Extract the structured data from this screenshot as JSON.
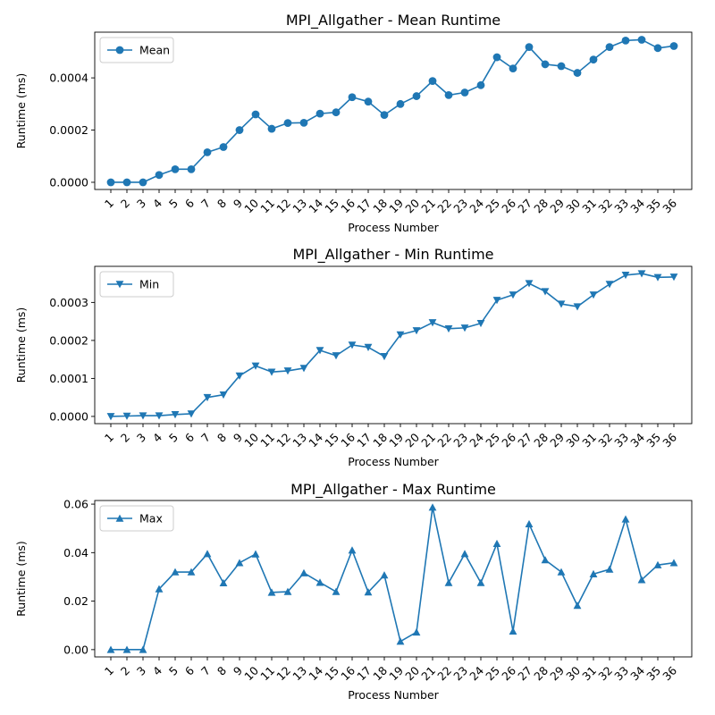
{
  "chart_data": [
    {
      "type": "line",
      "title": "MPI_Allgather - Mean Runtime",
      "xlabel": "Process Number",
      "ylabel": "Runtime (ms)",
      "marker": "circle",
      "color": "#1f77b4",
      "legend": "top-left",
      "grid": false,
      "ylim": [
        -2.75e-05,
        0.000575
      ],
      "yticks": [
        0,
        0.0002,
        0.0004
      ],
      "ytick_labels": [
        "0.0000",
        "0.0002",
        "0.0004"
      ],
      "categories": [
        "1",
        "2",
        "3",
        "4",
        "5",
        "6",
        "7",
        "8",
        "9",
        "10",
        "11",
        "12",
        "13",
        "14",
        "15",
        "16",
        "17",
        "18",
        "19",
        "20",
        "21",
        "22",
        "23",
        "24",
        "25",
        "26",
        "27",
        "28",
        "29",
        "30",
        "31",
        "32",
        "33",
        "34",
        "35",
        "36"
      ],
      "series": [
        {
          "name": "Mean",
          "values": [
            0.0,
            0.0,
            0.0,
            2.8e-05,
            5e-05,
            5e-05,
            0.000115,
            0.000135,
            0.0002,
            0.00026,
            0.000205,
            0.000227,
            0.000228,
            0.000263,
            0.000268,
            0.000326,
            0.000309,
            0.000258,
            0.0003,
            0.00033,
            0.000388,
            0.000334,
            0.000344,
            0.000372,
            0.000479,
            0.000436,
            0.000518,
            0.000452,
            0.000445,
            0.000419,
            0.00047,
            0.000518,
            0.000543,
            0.000546,
            0.000514,
            0.000522
          ]
        }
      ]
    },
    {
      "type": "line",
      "title": "MPI_Allgather - Min Runtime",
      "xlabel": "Process Number",
      "ylabel": "Runtime (ms)",
      "marker": "triangle-down",
      "color": "#1f77b4",
      "legend": "top-left",
      "grid": false,
      "ylim": [
        -1.9e-05,
        0.000395
      ],
      "yticks": [
        0,
        0.0001,
        0.0002,
        0.0003
      ],
      "ytick_labels": [
        "0.0000",
        "0.0001",
        "0.0002",
        "0.0003"
      ],
      "categories": [
        "1",
        "2",
        "3",
        "4",
        "5",
        "6",
        "7",
        "8",
        "9",
        "10",
        "11",
        "12",
        "13",
        "14",
        "15",
        "16",
        "17",
        "18",
        "19",
        "20",
        "21",
        "22",
        "23",
        "24",
        "25",
        "26",
        "27",
        "28",
        "29",
        "30",
        "31",
        "32",
        "33",
        "34",
        "35",
        "36"
      ],
      "series": [
        {
          "name": "Min",
          "values": [
            0.0,
            1e-06,
            2e-06,
            2e-06,
            5e-06,
            7e-06,
            5e-05,
            5.7e-05,
            0.000107,
            0.000133,
            0.000117,
            0.00012,
            0.000127,
            0.000174,
            0.00016,
            0.000188,
            0.000182,
            0.000158,
            0.000215,
            0.000226,
            0.000247,
            0.000231,
            0.000233,
            0.000245,
            0.000306,
            0.00032,
            0.00035,
            0.000329,
            0.000296,
            0.000289,
            0.00032,
            0.000348,
            0.000372,
            0.000376,
            0.000366,
            0.000367
          ]
        }
      ]
    },
    {
      "type": "line",
      "title": "MPI_Allgather - Max Runtime",
      "xlabel": "Process Number",
      "ylabel": "Runtime (ms)",
      "marker": "triangle-up",
      "color": "#1f77b4",
      "legend": "top-left",
      "grid": false,
      "ylim": [
        -0.003,
        0.0615
      ],
      "yticks": [
        0,
        0.02,
        0.04,
        0.06
      ],
      "ytick_labels": [
        "0.00",
        "0.02",
        "0.04",
        "0.06"
      ],
      "categories": [
        "1",
        "2",
        "3",
        "4",
        "5",
        "6",
        "7",
        "8",
        "9",
        "10",
        "11",
        "12",
        "13",
        "14",
        "15",
        "16",
        "17",
        "18",
        "19",
        "20",
        "21",
        "22",
        "23",
        "24",
        "25",
        "26",
        "27",
        "28",
        "29",
        "30",
        "31",
        "32",
        "33",
        "34",
        "35",
        "36"
      ],
      "series": [
        {
          "name": "Max",
          "values": [
            0.0,
            0.0,
            0.0,
            0.025,
            0.032,
            0.032,
            0.0395,
            0.0275,
            0.0358,
            0.0394,
            0.0236,
            0.0239,
            0.0316,
            0.0277,
            0.0239,
            0.041,
            0.0237,
            0.0307,
            0.0034,
            0.0072,
            0.0587,
            0.0276,
            0.0395,
            0.0276,
            0.0437,
            0.0076,
            0.0518,
            0.037,
            0.032,
            0.0182,
            0.0312,
            0.0331,
            0.0538,
            0.0288,
            0.0349,
            0.0358
          ]
        }
      ]
    }
  ]
}
